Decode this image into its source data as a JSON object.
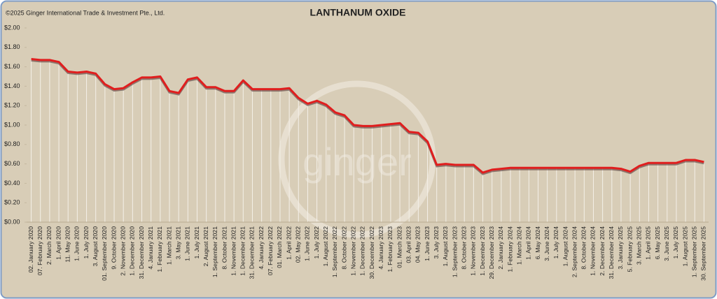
{
  "chart_data": {
    "type": "line",
    "title": "LANTHANUM OXIDE",
    "copyright": "©2025 Ginger International Trade & Investment Pte., Ltd.",
    "watermark": "ginger",
    "categories": [
      "02. January 2020",
      "07. February 2020",
      "2. March 2020",
      "1. April 2020",
      "11. May 2020",
      "1. June 2020",
      "1. July 2020",
      "3. August 2020",
      "01. September 2020",
      "9. October 2020",
      "2. November 2020",
      "1. December 2020",
      "31. December 2020",
      "4. January 2021",
      "1. February 2021",
      "1. March 2021",
      "3. May 2021",
      "1. June 2021",
      "1. July 2021",
      "2. August 2021",
      "1. September 2021",
      "8. October 2021",
      "1. November 2021",
      "1. December 2021",
      "31. December 2021",
      "4. January 2022",
      "07. February 2022",
      "01. March 2022",
      "1. April 2022",
      "02. May 2022",
      "1. June 2022",
      "1. July 2022",
      "1. August 2022",
      "1. September 2022",
      "8. October 2022",
      "1. November 2022",
      "1. December 2022",
      "30. December 2022",
      "4. January 2023",
      "1. February 2023",
      "01. March 2023",
      "03. April 2023",
      "04. May 2023",
      "1. June 2023",
      "3. July 2023",
      "1. August 2023",
      "1. September 2023",
      "8. October 2023",
      "1. November 2023",
      "1. December 2023",
      "29. December 2023",
      "2. January 2024",
      "1. February 2024",
      "1. March 2024",
      "1. April 2024",
      "6. May 2024",
      "3. June 2024",
      "1. July 2024",
      "1. August 2024",
      "2. September 2024",
      "8. October 2024",
      "1. November 2024",
      "2. December 2024",
      "31. December 2024",
      "3. January 2025",
      "5. February 2025",
      "3. March 2025",
      "1. April 2025",
      "6. May 2025",
      "3. June 2025",
      "1. July 2025",
      "1. August 2025",
      "1. September 2025",
      "30. September 2025"
    ],
    "series": [
      {
        "name": "Lanthanum Oxide",
        "color": "#e01e1e",
        "values": [
          1.68,
          1.67,
          1.67,
          1.65,
          1.55,
          1.54,
          1.55,
          1.53,
          1.42,
          1.37,
          1.38,
          1.44,
          1.49,
          1.49,
          1.5,
          1.35,
          1.33,
          1.47,
          1.49,
          1.39,
          1.39,
          1.35,
          1.35,
          1.46,
          1.37,
          1.37,
          1.37,
          1.37,
          1.38,
          1.28,
          1.22,
          1.25,
          1.21,
          1.13,
          1.1,
          1.0,
          0.99,
          0.99,
          1.0,
          1.01,
          1.02,
          0.93,
          0.92,
          0.83,
          0.59,
          0.6,
          0.59,
          0.59,
          0.59,
          0.51,
          0.54,
          0.55,
          0.56,
          0.56,
          0.56,
          0.56,
          0.56,
          0.56,
          0.56,
          0.56,
          0.56,
          0.56,
          0.56,
          0.56,
          0.55,
          0.52,
          0.58,
          0.61,
          0.61,
          0.61,
          0.61,
          0.64,
          0.64,
          0.62
        ]
      }
    ],
    "ylim": [
      0,
      2
    ],
    "yticks": [
      {
        "value": 0,
        "label": "$0.00"
      },
      {
        "value": 0.2,
        "label": "$0.20"
      },
      {
        "value": 0.4,
        "label": "$0.40"
      },
      {
        "value": 0.6,
        "label": "$0.60"
      },
      {
        "value": 0.8,
        "label": "$0.80"
      },
      {
        "value": 1,
        "label": "$1.00"
      },
      {
        "value": 1.2,
        "label": "$1.20"
      },
      {
        "value": 1.4,
        "label": "$1.40"
      },
      {
        "value": 1.6,
        "label": "$1.60"
      },
      {
        "value": 1.8,
        "label": "$1.80"
      },
      {
        "value": 2,
        "label": "$2.00"
      }
    ]
  }
}
